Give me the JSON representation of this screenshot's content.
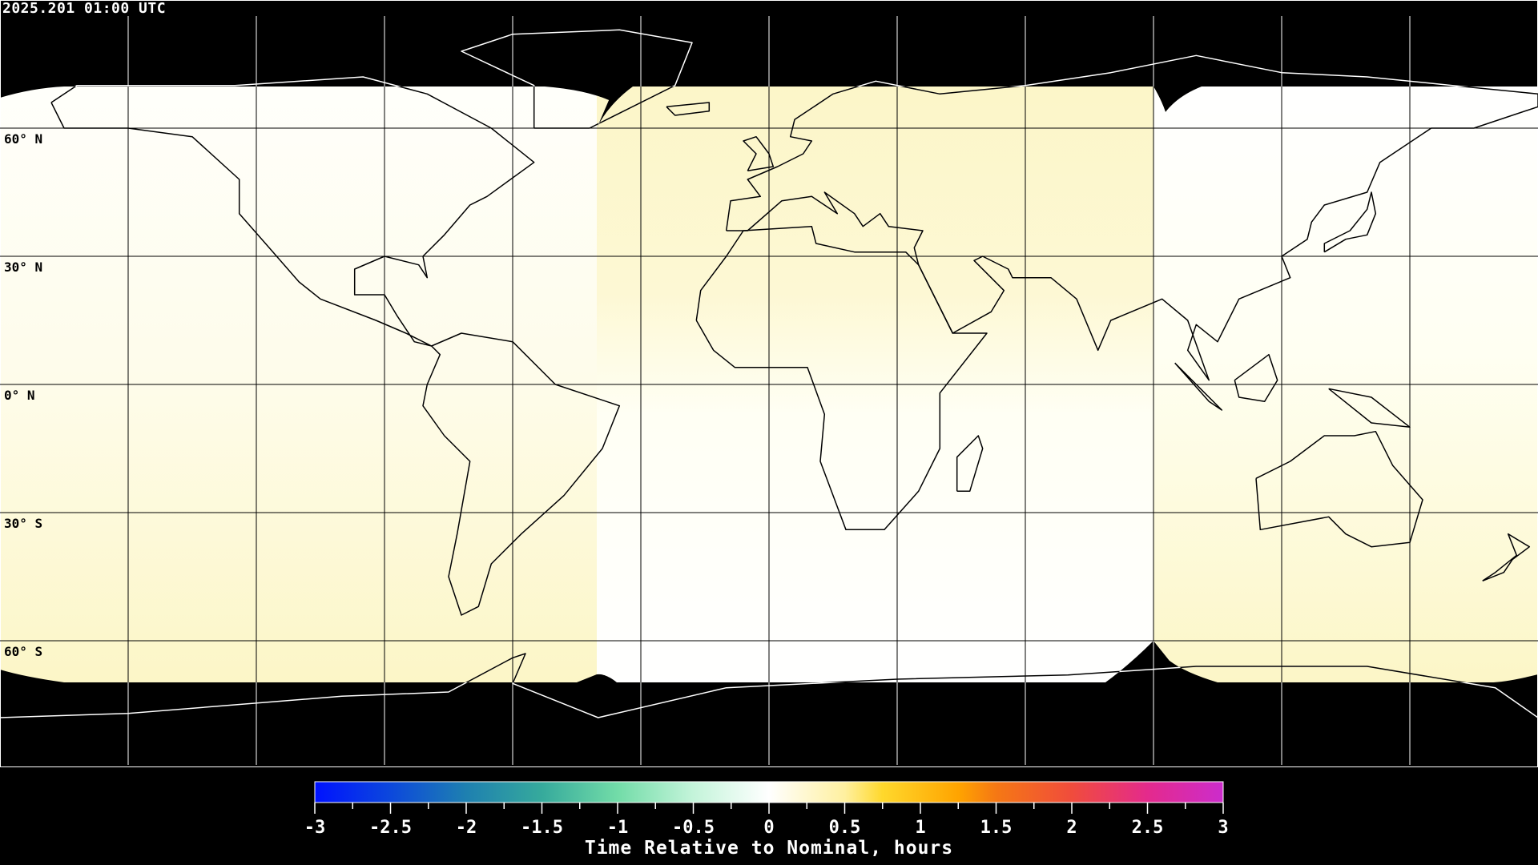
{
  "header": {
    "timestamp": "2025.201 01:00 UTC"
  },
  "map": {
    "projection": "equirectangular",
    "lat_labels": [
      "60° N",
      "30° N",
      "0° N",
      "30° S",
      "60° S"
    ],
    "colors": {
      "no_data": "#000000",
      "coastline_on_data": "#000000",
      "coastline_on_nodata": "#ffffff",
      "near_zero": "#fffff6",
      "slight_positive": "#fdf8cc"
    }
  },
  "colorbar": {
    "title": "Time Relative to Nominal, hours",
    "min": -3,
    "max": 3,
    "tick_labels": [
      "-3",
      "-2.5",
      "-2",
      "-1.5",
      "-1",
      "-0.5",
      "0",
      "0.5",
      "1",
      "1.5",
      "2",
      "2.5",
      "3"
    ],
    "stops": [
      {
        "value": -3,
        "color": "#0012ff"
      },
      {
        "value": -2.5,
        "color": "#0c48dc"
      },
      {
        "value": -2,
        "color": "#1e80b0"
      },
      {
        "value": -1.5,
        "color": "#36aa9c"
      },
      {
        "value": -1,
        "color": "#72dca8"
      },
      {
        "value": -0.5,
        "color": "#c4f4da"
      },
      {
        "value": 0,
        "color": "#ffffff"
      },
      {
        "value": 0.5,
        "color": "#fff0a0"
      },
      {
        "value": 0.75,
        "color": "#ffd82c"
      },
      {
        "value": 1.25,
        "color": "#ffa400"
      },
      {
        "value": 1.5,
        "color": "#f57814"
      },
      {
        "value": 2,
        "color": "#f04c3c"
      },
      {
        "value": 2.5,
        "color": "#e42a8c"
      },
      {
        "value": 3,
        "color": "#cc2ccc"
      }
    ]
  }
}
